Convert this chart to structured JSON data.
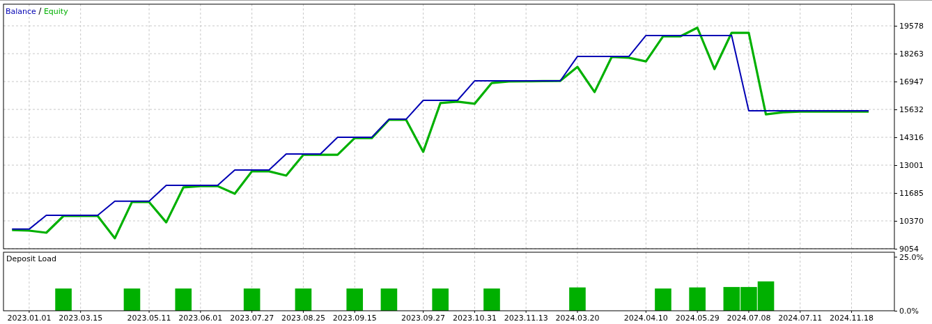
{
  "chart_data": [
    {
      "type": "line",
      "legend": "top left",
      "grid": true,
      "tick_labels": "y",
      "categories": [
        null,
        "2023.01.01",
        null,
        null,
        "2023.03.15",
        null,
        null,
        null,
        "2023.05.11",
        null,
        null,
        "2023.06.01",
        null,
        null,
        "2023.07.27",
        null,
        null,
        "2023.08.25",
        null,
        null,
        "2023.09.15",
        null,
        null,
        null,
        "2023.09.27",
        null,
        null,
        "2023.10.31",
        null,
        null,
        "2023.11.13",
        null,
        null,
        "2024.03.20",
        null,
        null,
        null,
        "2024.04.10",
        null,
        null,
        "2024.05.29",
        null,
        null,
        "2024.07.08",
        null,
        null,
        "2024.07.11",
        null,
        null,
        "2024.11.18",
        null,
        null
      ],
      "ylim": [
        9054,
        20600
      ],
      "yticks": [
        9054,
        10370,
        11685,
        13001,
        14316,
        15632,
        16947,
        18263,
        19578
      ],
      "series": [
        {
          "name": "Balance",
          "color": "#0000b4",
          "values": [
            9980,
            9980,
            10630,
            10630,
            10630,
            10630,
            11300,
            11300,
            11300,
            12050,
            12050,
            12050,
            12050,
            12770,
            12770,
            12770,
            13530,
            13530,
            13530,
            14320,
            14320,
            14320,
            15170,
            15170,
            16060,
            16060,
            16060,
            16980,
            16980,
            16980,
            16980,
            16980,
            16980,
            18130,
            18130,
            18130,
            18130,
            19120,
            19120,
            19120,
            19120,
            19120,
            19120,
            15570,
            15570,
            15570,
            15570,
            15570,
            15570,
            15570,
            15570,
            null
          ]
        },
        {
          "name": "Equity",
          "color": "#00b000",
          "values": [
            9940,
            9910,
            9810,
            10600,
            10600,
            10600,
            9550,
            11260,
            11260,
            10300,
            11950,
            12010,
            12010,
            11650,
            12710,
            12710,
            12510,
            13490,
            13490,
            13490,
            14280,
            14280,
            15140,
            15140,
            13630,
            15930,
            16000,
            15900,
            16880,
            16950,
            16960,
            16970,
            16980,
            17640,
            16450,
            18110,
            18070,
            17900,
            19080,
            19080,
            19490,
            17540,
            19250,
            19250,
            15400,
            15500,
            15530,
            15530,
            15530,
            15530,
            15530,
            null
          ]
        }
      ]
    },
    {
      "type": "bar",
      "title": "Deposit Load",
      "grid": "x",
      "categories": [
        null,
        "2023.01.01",
        null,
        null,
        "2023.03.15",
        null,
        null,
        null,
        "2023.05.11",
        null,
        null,
        "2023.06.01",
        null,
        null,
        "2023.07.27",
        null,
        null,
        "2023.08.25",
        null,
        null,
        "2023.09.15",
        null,
        null,
        null,
        "2023.09.27",
        null,
        null,
        "2023.10.31",
        null,
        null,
        "2023.11.13",
        null,
        null,
        "2024.03.20",
        null,
        null,
        null,
        "2024.04.10",
        null,
        null,
        "2024.05.29",
        null,
        null,
        "2024.07.08",
        null,
        null,
        "2024.07.11",
        null,
        null,
        "2024.11.18",
        null,
        null
      ],
      "ylim": [
        0,
        27.1
      ],
      "yticks": [
        {
          "value": 0,
          "label": "0.0%"
        },
        {
          "value": 25,
          "label": "25.0%"
        }
      ],
      "values": [
        null,
        null,
        null,
        10.3,
        null,
        null,
        null,
        10.3,
        null,
        null,
        10.3,
        null,
        null,
        null,
        10.3,
        null,
        null,
        10.3,
        null,
        null,
        10.3,
        null,
        10.3,
        null,
        null,
        10.3,
        null,
        null,
        10.3,
        null,
        null,
        null,
        null,
        10.8,
        null,
        null,
        null,
        null,
        10.3,
        null,
        10.8,
        null,
        11.0,
        11.0,
        13.6,
        null,
        null,
        null,
        null,
        null,
        null,
        null
      ],
      "color": "#00b000"
    }
  ]
}
